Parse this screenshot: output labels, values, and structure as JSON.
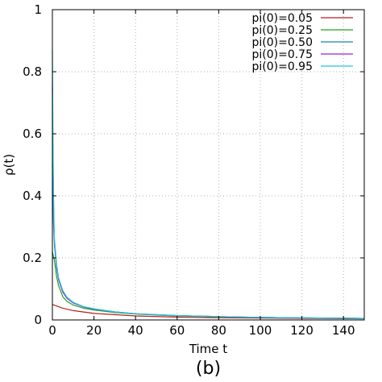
{
  "caption": "(b)",
  "chart_data": {
    "type": "line",
    "xlabel": "Time t",
    "ylabel": "ρ(t)",
    "xlim": [
      0,
      150
    ],
    "ylim": [
      0,
      1
    ],
    "xticks": [
      0,
      20,
      40,
      60,
      80,
      100,
      120,
      140
    ],
    "yticks": [
      0,
      0.2,
      0.4,
      0.6,
      0.8,
      1
    ],
    "ytick_labels": [
      "0",
      "0.2",
      "0.4",
      "0.6",
      "0.8",
      "1"
    ],
    "grid": true,
    "legend_position": "top-right",
    "series": [
      {
        "name": "pi(0)=0.05",
        "color": "#b22222",
        "x": [
          0,
          2,
          5,
          10,
          20,
          40,
          60,
          80,
          100,
          150
        ],
        "y": [
          0.05,
          0.045,
          0.038,
          0.03,
          0.021,
          0.013,
          0.009,
          0.007,
          0.006,
          0.004
        ]
      },
      {
        "name": "pi(0)=0.25",
        "color": "#22a022",
        "x": [
          0,
          1,
          2,
          3,
          5,
          7,
          10,
          15,
          20,
          30,
          40,
          60,
          80,
          100,
          150
        ],
        "y": [
          0.22,
          0.19,
          0.14,
          0.11,
          0.075,
          0.06,
          0.048,
          0.038,
          0.032,
          0.024,
          0.019,
          0.013,
          0.01,
          0.008,
          0.005
        ]
      },
      {
        "name": "pi(0)=0.50",
        "color": "#1e7fb8",
        "x": [
          0,
          0.5,
          1,
          2,
          3,
          5,
          7,
          10,
          15,
          20,
          30,
          40,
          60,
          80,
          100,
          150
        ],
        "y": [
          0.5,
          0.32,
          0.24,
          0.17,
          0.13,
          0.09,
          0.07,
          0.055,
          0.042,
          0.035,
          0.026,
          0.02,
          0.014,
          0.011,
          0.008,
          0.005
        ]
      },
      {
        "name": "pi(0)=0.75",
        "color": "#a020c8",
        "x": [
          0,
          0.3,
          0.7,
          1,
          2,
          3,
          5,
          7,
          10,
          15,
          20,
          30,
          40,
          60,
          80,
          100,
          150
        ],
        "y": [
          0.75,
          0.5,
          0.32,
          0.25,
          0.17,
          0.13,
          0.09,
          0.07,
          0.055,
          0.042,
          0.035,
          0.026,
          0.02,
          0.014,
          0.011,
          0.008,
          0.005
        ]
      },
      {
        "name": "pi(0)=0.95",
        "color": "#20c8d8",
        "x": [
          0,
          0.3,
          0.7,
          1,
          2,
          3,
          5,
          7,
          10,
          15,
          20,
          30,
          40,
          60,
          80,
          100,
          150
        ],
        "y": [
          0.87,
          0.55,
          0.34,
          0.26,
          0.18,
          0.135,
          0.095,
          0.073,
          0.057,
          0.043,
          0.036,
          0.026,
          0.02,
          0.014,
          0.011,
          0.008,
          0.005
        ]
      }
    ]
  }
}
